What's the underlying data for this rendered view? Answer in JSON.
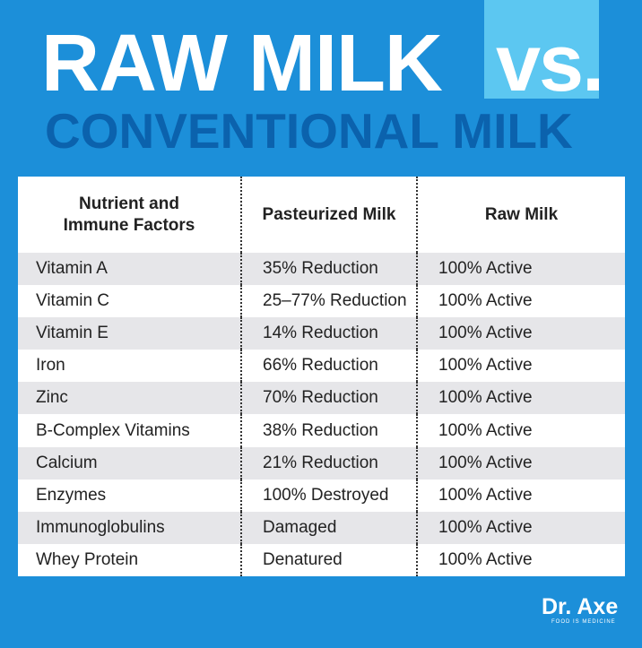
{
  "header": {
    "title": "RAW MILK",
    "badge": "vs.",
    "subtitle": "CONVENTIONAL MILK"
  },
  "table": {
    "columns": [
      "Nutrient and Immune Factors",
      "Pasteurized Milk",
      "Raw Milk"
    ],
    "rows": [
      [
        "Vitamin A",
        "35% Reduction",
        "100% Active"
      ],
      [
        "Vitamin C",
        "25–77% Reduction",
        "100% Active"
      ],
      [
        "Vitamin E",
        "14% Reduction",
        "100% Active"
      ],
      [
        "Iron",
        "66% Reduction",
        "100% Active"
      ],
      [
        "Zinc",
        "70% Reduction",
        "100% Active"
      ],
      [
        "B-Complex Vitamins",
        "38% Reduction",
        "100% Active"
      ],
      [
        "Calcium",
        "21% Reduction",
        "100% Active"
      ],
      [
        "Enzymes",
        "100% Destroyed",
        "100% Active"
      ],
      [
        "Immunoglobulins",
        "Damaged",
        "100% Active"
      ],
      [
        "Whey Protein",
        "Denatured",
        "100% Active"
      ]
    ]
  },
  "footer": {
    "brand": "Dr. Axe",
    "tagline": "FOOD IS MEDICINE"
  }
}
